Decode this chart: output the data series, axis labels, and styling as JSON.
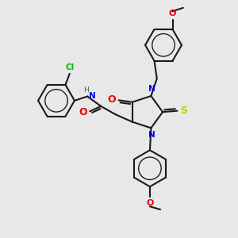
{
  "bg_color": "#e8e8e8",
  "bond_color": "#1a1a1a",
  "N_color": "#0000ee",
  "O_color": "#ee0000",
  "S_color": "#cccc00",
  "Cl_color": "#00bb00",
  "H_color": "#555555",
  "line_width": 1.5,
  "figsize": [
    3.0,
    3.0
  ],
  "dpi": 100,
  "xlim": [
    0,
    10
  ],
  "ylim": [
    0,
    10
  ]
}
